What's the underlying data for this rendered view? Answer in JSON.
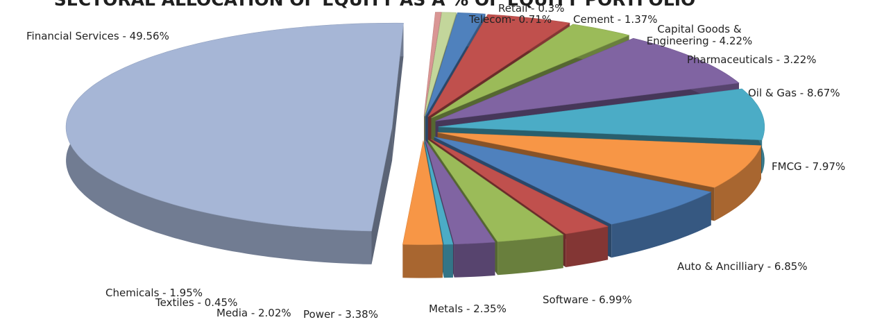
{
  "chart_data": {
    "type": "pie",
    "title": "SECTORAL ALLOCATION OF EQUITY AS A % OF EQUITY PORTFOLIO",
    "categories": [
      "Retail - 0.3%",
      "Telecom- 0.71%",
      "Cement - 1.37%",
      "Capital Goods & Engineering - 4.22%",
      "Pharmaceuticals - 3.22%",
      "Oil & Gas  - 8.67%",
      "FMCG - 7.97%",
      "Auto & Ancilliary  - 6.85%",
      "Software - 6.99%",
      "Metals - 2.35%",
      "Power - 3.38%",
      "Media - 2.02%",
      "Textiles - 0.45%",
      "Chemicals - 1.95%",
      "Financial Services - 49.56%"
    ],
    "values": [
      0.3,
      0.71,
      1.37,
      4.22,
      3.22,
      8.67,
      7.97,
      6.85,
      6.99,
      2.35,
      3.38,
      2.02,
      0.45,
      1.95,
      49.56
    ],
    "colors": [
      "#d99694",
      "#c3d69b",
      "#4f81bd",
      "#c0504d",
      "#9bbb59",
      "#8064a2",
      "#4bacc6",
      "#f79646",
      "#4f81bd",
      "#c0504d",
      "#9bbb59",
      "#8064a2",
      "#4bacc6",
      "#f79646",
      "#a6b6d6"
    ]
  }
}
